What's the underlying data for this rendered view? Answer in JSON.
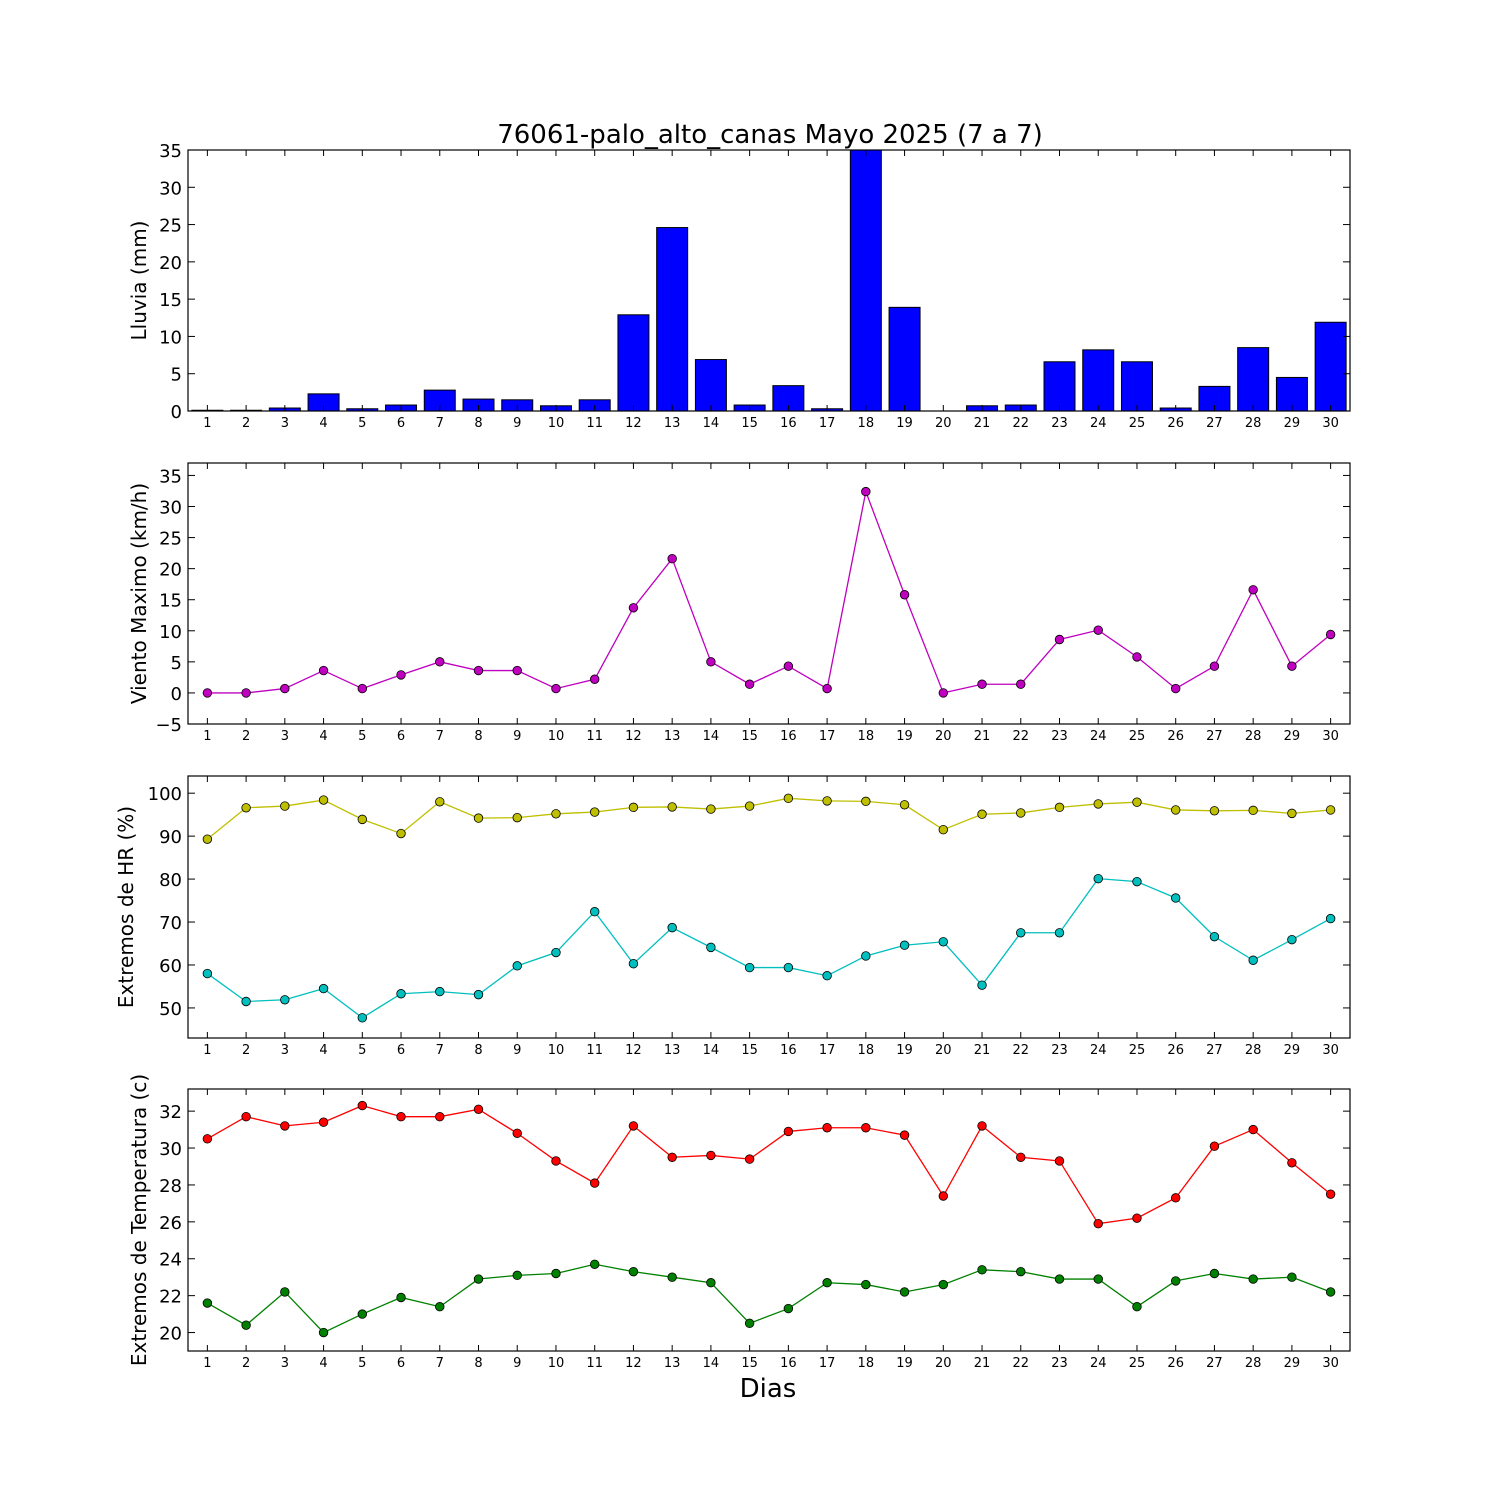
{
  "chart_data": [
    {
      "type": "bar",
      "title": "76061-palo_alto_canas Mayo 2025  (7 a 7)",
      "ylabel": "Lluvia (mm)",
      "xlabel": "",
      "ylim": [
        0,
        35
      ],
      "yticks": [
        0,
        5,
        10,
        15,
        20,
        25,
        30,
        35
      ],
      "x": [
        1,
        2,
        3,
        4,
        5,
        6,
        7,
        8,
        9,
        10,
        11,
        12,
        13,
        14,
        15,
        16,
        17,
        18,
        19,
        20,
        21,
        22,
        23,
        24,
        25,
        26,
        27,
        28,
        29,
        30
      ],
      "series": [
        {
          "color": "#0000ff",
          "values": [
            0.1,
            0.1,
            0.4,
            2.3,
            0.3,
            0.8,
            2.8,
            1.6,
            1.5,
            0.7,
            1.5,
            12.9,
            24.6,
            6.9,
            0.8,
            3.4,
            0.3,
            35.0,
            13.9,
            0.0,
            0.7,
            0.8,
            6.6,
            8.2,
            6.6,
            0.4,
            3.3,
            8.5,
            4.5,
            11.9
          ]
        }
      ],
      "grid": false
    },
    {
      "type": "line",
      "ylabel": "Viento Maximo (km/h)",
      "ylim": [
        -5,
        37
      ],
      "yticks": [
        -5,
        0,
        5,
        10,
        15,
        20,
        25,
        30,
        35
      ],
      "x": [
        1,
        2,
        3,
        4,
        5,
        6,
        7,
        8,
        9,
        10,
        11,
        12,
        13,
        14,
        15,
        16,
        17,
        18,
        19,
        20,
        21,
        22,
        23,
        24,
        25,
        26,
        27,
        28,
        29,
        30
      ],
      "series": [
        {
          "color": "#bf00bf",
          "values": [
            0.0,
            0.0,
            0.7,
            3.6,
            0.7,
            2.9,
            5.0,
            3.6,
            3.6,
            0.7,
            2.2,
            13.7,
            21.6,
            5.0,
            1.4,
            4.3,
            0.7,
            32.4,
            15.8,
            0.0,
            1.4,
            1.4,
            8.6,
            10.1,
            5.8,
            0.7,
            4.3,
            16.6,
            4.3,
            9.4
          ]
        }
      ],
      "grid": false
    },
    {
      "type": "line",
      "ylabel": "Extremos de HR (%)",
      "ylim": [
        43,
        104
      ],
      "yticks": [
        50,
        60,
        70,
        80,
        90,
        100
      ],
      "x": [
        1,
        2,
        3,
        4,
        5,
        6,
        7,
        8,
        9,
        10,
        11,
        12,
        13,
        14,
        15,
        16,
        17,
        18,
        19,
        20,
        21,
        22,
        23,
        24,
        25,
        26,
        27,
        28,
        29,
        30
      ],
      "series": [
        {
          "color": "#bfbf00",
          "values": [
            89.3,
            96.6,
            97.0,
            98.4,
            93.9,
            90.6,
            98.0,
            94.2,
            94.3,
            95.2,
            95.6,
            96.7,
            96.8,
            96.3,
            97.0,
            98.8,
            98.2,
            98.1,
            97.3,
            91.5,
            95.1,
            95.4,
            96.7,
            97.5,
            97.9,
            96.1,
            95.9,
            96.0,
            95.3,
            96.1
          ]
        },
        {
          "color": "#00bfbf",
          "values": [
            58.0,
            51.5,
            51.9,
            54.5,
            47.7,
            53.3,
            53.8,
            53.1,
            59.8,
            62.9,
            72.4,
            60.3,
            68.7,
            64.1,
            59.4,
            59.4,
            57.5,
            62.1,
            64.6,
            65.4,
            55.3,
            67.5,
            67.5,
            80.1,
            79.4,
            75.6,
            66.6,
            61.1,
            65.9,
            70.8
          ]
        }
      ],
      "grid": false
    },
    {
      "type": "line",
      "ylabel": "Extremos de Temperatura (c)",
      "xlabel": "Dias",
      "ylim": [
        19,
        33.2
      ],
      "yticks": [
        20,
        22,
        24,
        26,
        28,
        30,
        32
      ],
      "x": [
        1,
        2,
        3,
        4,
        5,
        6,
        7,
        8,
        9,
        10,
        11,
        12,
        13,
        14,
        15,
        16,
        17,
        18,
        19,
        20,
        21,
        22,
        23,
        24,
        25,
        26,
        27,
        28,
        29,
        30
      ],
      "series": [
        {
          "color": "#ff0000",
          "values": [
            30.5,
            31.7,
            31.2,
            31.4,
            32.3,
            31.7,
            31.7,
            32.1,
            30.8,
            29.3,
            28.1,
            31.2,
            29.5,
            29.6,
            29.4,
            30.9,
            31.1,
            31.1,
            30.7,
            27.4,
            31.2,
            29.5,
            29.3,
            25.9,
            26.2,
            27.3,
            30.1,
            31.0,
            29.2,
            27.5
          ]
        },
        {
          "color": "#008000",
          "values": [
            21.6,
            20.4,
            22.2,
            20.0,
            21.0,
            21.9,
            21.4,
            22.9,
            23.1,
            23.2,
            23.7,
            23.3,
            23.0,
            22.7,
            20.5,
            21.3,
            22.7,
            22.6,
            22.2,
            22.6,
            23.4,
            23.3,
            22.9,
            22.9,
            21.4,
            22.8,
            23.2,
            22.9,
            23.0,
            22.2
          ]
        }
      ],
      "grid": false
    }
  ]
}
